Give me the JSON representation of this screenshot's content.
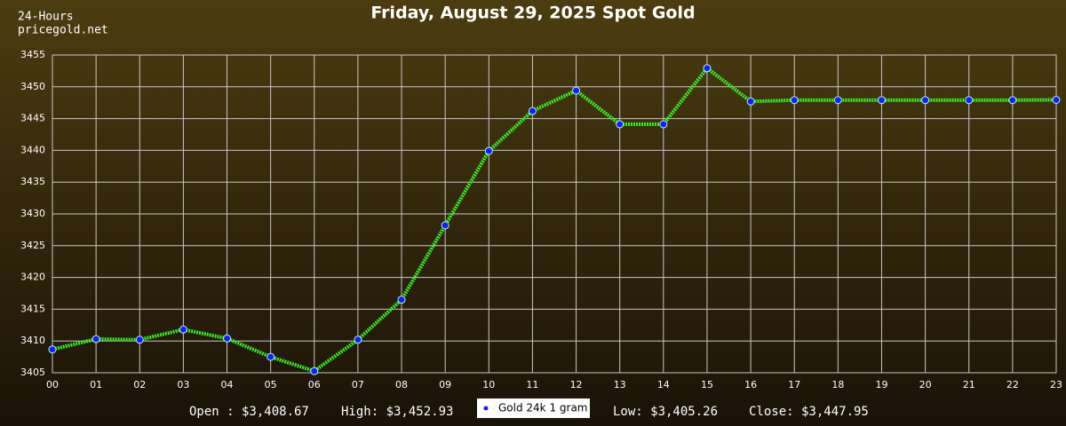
{
  "chart_data": {
    "type": "line",
    "title": "Friday, August 29, 2025 Spot Gold",
    "subtitle": "24-Hours",
    "source": "pricegold.net",
    "categories": [
      "00",
      "01",
      "02",
      "03",
      "04",
      "05",
      "06",
      "07",
      "08",
      "09",
      "10",
      "11",
      "12",
      "13",
      "14",
      "15",
      "16",
      "17",
      "18",
      "19",
      "20",
      "21",
      "22",
      "23"
    ],
    "series": [
      {
        "name": "Gold 24k 1 gram",
        "color": "#33ee22",
        "marker_color": "#1a1aff",
        "values": [
          3408.67,
          3410.3,
          3410.2,
          3411.8,
          3410.4,
          3407.5,
          3405.26,
          3410.2,
          3416.5,
          3428.2,
          3439.9,
          3446.2,
          3449.4,
          3444.1,
          3444.1,
          3452.93,
          3447.7,
          3447.9,
          3447.9,
          3447.9,
          3447.9,
          3447.9,
          3447.9,
          3447.95
        ]
      }
    ],
    "ylim": [
      3405,
      3455
    ],
    "yticks": [
      3405,
      3410,
      3415,
      3420,
      3425,
      3430,
      3435,
      3440,
      3445,
      3450,
      3455
    ],
    "grid": true,
    "stats": {
      "open": "Open : $3,408.67",
      "high": "High: $3,452.93",
      "low": "Low: $3,405.26",
      "close": "Close: $3,447.95"
    }
  }
}
